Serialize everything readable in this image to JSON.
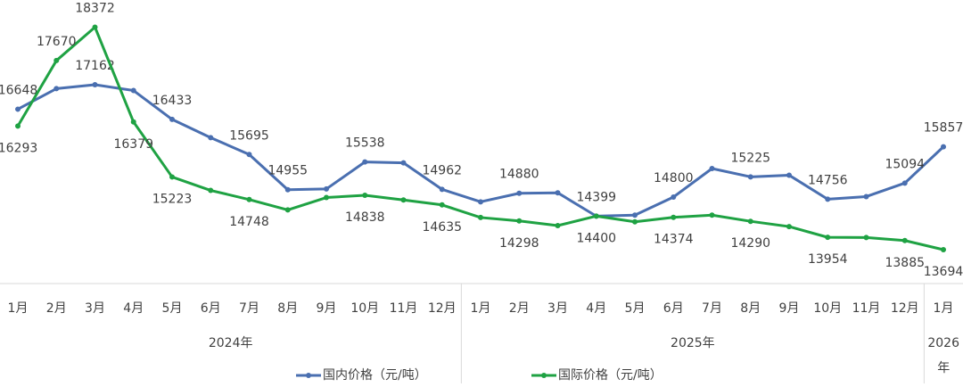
{
  "chart_data": {
    "type": "line",
    "categories": [
      "1月",
      "2月",
      "3月",
      "4月",
      "5月",
      "6月",
      "7月",
      "8月",
      "9月",
      "10月",
      "11月",
      "12月",
      "1月",
      "2月",
      "3月",
      "4月",
      "5月",
      "6月",
      "7月",
      "8月",
      "9月",
      "10月",
      "11月",
      "12月",
      "1月"
    ],
    "category_groups": [
      {
        "label": "2024年",
        "count": 12
      },
      {
        "label": "2025年",
        "count": 12
      },
      {
        "label": "2026年",
        "count": 1
      }
    ],
    "ylim": [
      13000,
      19000
    ],
    "series": [
      {
        "name": "国内价格（元/吨）",
        "color": "#4a6fb0",
        "values": [
          16648,
          17080,
          17162,
          17040,
          16433,
          16050,
          15695,
          14955,
          14970,
          15538,
          15520,
          14962,
          14700,
          14880,
          14890,
          14399,
          14420,
          14800,
          15400,
          15225,
          15260,
          14756,
          14810,
          15094,
          15857
        ],
        "value_labels": [
          "16648",
          null,
          "17162",
          null,
          "16433",
          null,
          "15695",
          "14955",
          null,
          "15538",
          null,
          "14962",
          null,
          "14880",
          null,
          "14399",
          null,
          "14800",
          null,
          "15225",
          null,
          "14756",
          null,
          "15094",
          "15857"
        ]
      },
      {
        "name": "国际价格（元/吨）",
        "color": "#1fa243",
        "values": [
          16293,
          17670,
          18372,
          16379,
          15223,
          14940,
          14748,
          14530,
          14790,
          14838,
          14740,
          14635,
          14370,
          14298,
          14200,
          14400,
          14280,
          14374,
          14420,
          14290,
          14180,
          13954,
          13950,
          13885,
          13694
        ],
        "value_labels": [
          "16293",
          "17670",
          "18372",
          "16379",
          "15223",
          null,
          "14748",
          null,
          null,
          "14838",
          null,
          "14635",
          null,
          "14298",
          null,
          "14400",
          null,
          "14374",
          null,
          "14290",
          null,
          "13954",
          null,
          "13885",
          "13694"
        ]
      }
    ]
  }
}
